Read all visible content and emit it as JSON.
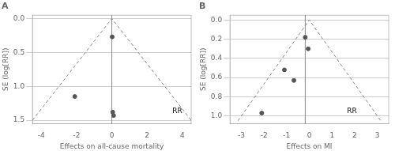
{
  "chart_data": [
    {
      "type": "scatter",
      "title": "A",
      "xlabel": "Effects on all-cause mortality",
      "ylabel": "SE (log[RR])",
      "xlim": [
        -4.5,
        4.5
      ],
      "ylim": [
        1.55,
        -0.05
      ],
      "xticks": [
        -4,
        -2,
        0,
        2,
        4
      ],
      "yticks": [
        {
          "value": 0,
          "label": "0.0"
        },
        0.5,
        {
          "value": 1.0,
          "label": "1.0"
        },
        1.5
      ],
      "grid": "y",
      "series": [
        {
          "type": "line",
          "line_style": "dashed",
          "color": "#888888",
          "x": [
            -4.5,
            0.0,
            4.5
          ],
          "values": [
            1.5,
            0.0,
            1.5
          ]
        },
        {
          "type": "vline",
          "color": "#888888",
          "x": 0.0
        },
        {
          "type": "scatter",
          "marker": "circle",
          "color": "#555555",
          "x": [
            -2.1,
            0.02,
            0.05,
            0.1
          ],
          "values": [
            1.15,
            0.27,
            1.38,
            1.43
          ]
        }
      ],
      "annotations": [
        {
          "text": "RR",
          "x": 4.0,
          "y": 1.42
        }
      ]
    },
    {
      "type": "scatter",
      "title": "B",
      "xlabel": "Effects on MI",
      "ylabel": "SE (log[RR])",
      "xlim": [
        -3.5,
        3.5
      ],
      "ylim": [
        1.08,
        -0.05
      ],
      "xticks": [
        -3,
        -2,
        -1,
        0,
        1,
        2,
        3
      ],
      "yticks": [
        {
          "value": 0,
          "label": "0.0"
        },
        0.2,
        0.4,
        0.6,
        0.8,
        {
          "value": 1.0,
          "label": "1.0"
        }
      ],
      "grid": "y",
      "series": [
        {
          "type": "line",
          "line_style": "dashed",
          "color": "#888888",
          "x": [
            -3.15,
            0.0,
            3.15
          ],
          "values": [
            1.05,
            0.0,
            1.05
          ]
        },
        {
          "type": "vline",
          "color": "#888888",
          "x": -0.18
        },
        {
          "type": "scatter",
          "marker": "circle",
          "color": "#555555",
          "x": [
            -2.1,
            -1.1,
            -0.68,
            -0.18,
            -0.05
          ],
          "values": [
            0.97,
            0.52,
            0.63,
            0.18,
            0.3
          ]
        }
      ],
      "annotations": [
        {
          "text": "RR",
          "x": 2.1,
          "y": 0.99
        }
      ]
    }
  ]
}
